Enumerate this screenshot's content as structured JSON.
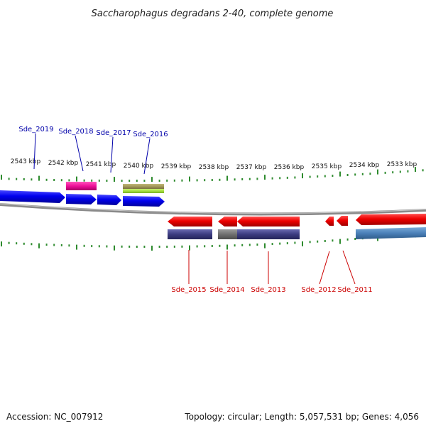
{
  "title": "Saccharophagus degradans 2-40, complete genome",
  "colors": {
    "forward_strand": "#0000ee",
    "reverse_strand": "#ee0000",
    "forward_label": "#0000aa",
    "reverse_label": "#cc0000",
    "ticks": "#2e8b2e",
    "backbone": "#8a8a8a",
    "magenta_feature": "#ee1199",
    "olive_feature": "#a49a5a",
    "lime_feature": "#a8e040",
    "navy_feature": "#3c3c80",
    "grey_feature": "#707070",
    "steelblue_feature": "#4a80b8"
  },
  "scale": {
    "unit": "kbp",
    "labels": [
      "2543 kbp",
      "2542 kbp",
      "2541 kbp",
      "2540 kbp",
      "2539 kbp",
      "2538 kbp",
      "2537 kbp",
      "2536 kbp",
      "2535 kbp",
      "2534 kbp",
      "2533 kbp"
    ]
  },
  "genes": {
    "forward": [
      "Sde_2019",
      "Sde_2018",
      "Sde_2017",
      "Sde_2016"
    ],
    "reverse": [
      "Sde_2015",
      "Sde_2014",
      "Sde_2013",
      "Sde_2012",
      "Sde_2011"
    ]
  },
  "footer": {
    "accession": "Accession: NC_007912",
    "summary": "Topology: circular; Length: 5,057,531 bp; Genes: 4,056"
  }
}
